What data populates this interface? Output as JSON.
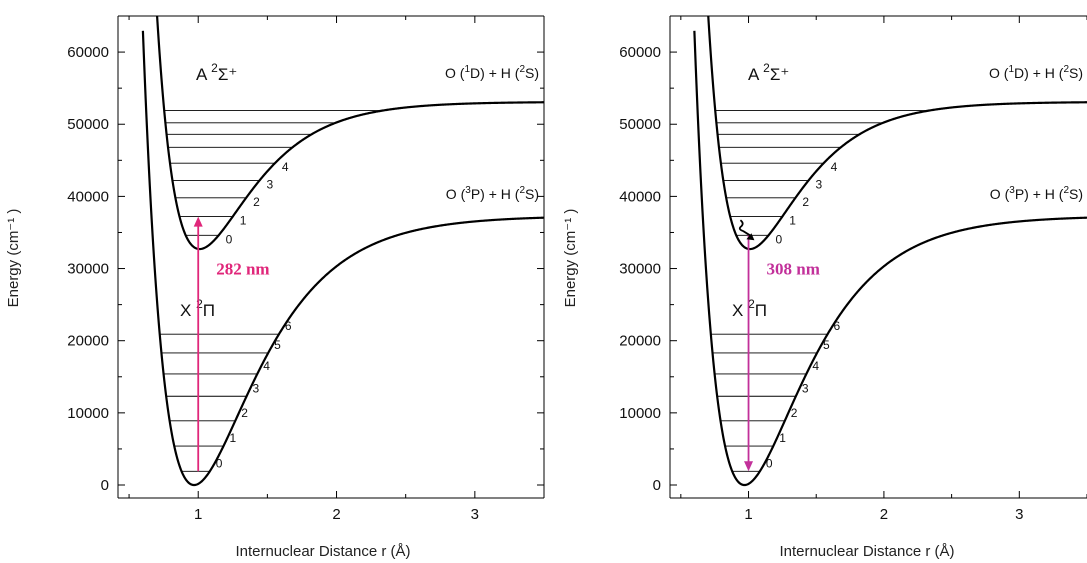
{
  "colors": {
    "curve": "#000000",
    "absorption_arrow": "#e0267a",
    "emission_arrow": "#c2309a"
  },
  "chart_data": [
    {
      "type": "line",
      "title": "",
      "xlabel": "Internuclear Distance  r (Å)",
      "ylabel": "Energy (cm⁻¹ )",
      "xlim": [
        0.42,
        3.5
      ],
      "ylim": [
        -1800,
        65000
      ],
      "x_ticks": [
        1,
        2,
        3
      ],
      "y_ticks": [
        0,
        10000,
        20000,
        30000,
        40000,
        50000,
        60000
      ],
      "ground_state": {
        "label": "X",
        "sup": "2",
        "symbol": "Π",
        "asymptote": {
          "label": "O (",
          "sup1": "3",
          "mid": "P) +  H (",
          "sup2": "2",
          "end": "S)"
        },
        "levels": [
          {
            "v": "0",
            "E": 1900
          },
          {
            "v": "1",
            "E": 5400
          },
          {
            "v": "2",
            "E": 8900
          },
          {
            "v": "3",
            "E": 12300
          },
          {
            "v": "4",
            "E": 15400
          },
          {
            "v": "5",
            "E": 18300
          },
          {
            "v": "6",
            "E": 20900
          }
        ]
      },
      "excited_state": {
        "label": "A",
        "sup": "2",
        "symbol": "Σ⁺",
        "asymptote": {
          "label": "O (",
          "sup1": "1",
          "mid": "D) +  H (",
          "sup2": "2",
          "end": "S)"
        },
        "levels": [
          {
            "v": "0",
            "E": 34600
          },
          {
            "v": "1",
            "E": 37200
          },
          {
            "v": "2",
            "E": 39800
          },
          {
            "v": "3",
            "E": 42200
          },
          {
            "v": "4",
            "E": 44600
          },
          {
            "v": "",
            "E": 46800
          },
          {
            "v": "",
            "E": 48600
          },
          {
            "v": "",
            "E": 50200
          },
          {
            "v": "",
            "E": 51900
          }
        ]
      },
      "transition": {
        "type": "absorption",
        "x": 1.0,
        "from_E": 1900,
        "to_E": 37200,
        "label": "282 nm"
      }
    },
    {
      "type": "line",
      "title": "",
      "xlabel": "Internuclear Distance  r (Å)",
      "ylabel": "Energy (cm⁻¹ )",
      "xlim": [
        0.42,
        3.5
      ],
      "ylim": [
        -1800,
        65000
      ],
      "x_ticks": [
        1,
        2,
        3
      ],
      "y_ticks": [
        0,
        10000,
        20000,
        30000,
        40000,
        50000,
        60000
      ],
      "ground_state": {
        "label": "X",
        "sup": "2",
        "symbol": "Π",
        "asymptote": {
          "label": "O (",
          "sup1": "3",
          "mid": "P) +  H (",
          "sup2": "2",
          "end": "S)"
        },
        "levels": [
          {
            "v": "0",
            "E": 1900
          },
          {
            "v": "1",
            "E": 5400
          },
          {
            "v": "2",
            "E": 8900
          },
          {
            "v": "3",
            "E": 12300
          },
          {
            "v": "4",
            "E": 15400
          },
          {
            "v": "5",
            "E": 18300
          },
          {
            "v": "6",
            "E": 20900
          }
        ]
      },
      "excited_state": {
        "label": "A",
        "sup": "2",
        "symbol": "Σ⁺",
        "asymptote": {
          "label": "O (",
          "sup1": "1",
          "mid": "D) +  H (",
          "sup2": "2",
          "end": "S)"
        },
        "levels": [
          {
            "v": "0",
            "E": 34600
          },
          {
            "v": "1",
            "E": 37200
          },
          {
            "v": "2",
            "E": 39800
          },
          {
            "v": "3",
            "E": 42200
          },
          {
            "v": "4",
            "E": 44600
          },
          {
            "v": "",
            "E": 46800
          },
          {
            "v": "",
            "E": 48600
          },
          {
            "v": "",
            "E": 50200
          },
          {
            "v": "",
            "E": 51900
          }
        ]
      },
      "transition": {
        "type": "emission",
        "x": 1.0,
        "from_E": 34600,
        "to_E": 1900,
        "label": "308 nm",
        "relaxation": true
      }
    }
  ]
}
